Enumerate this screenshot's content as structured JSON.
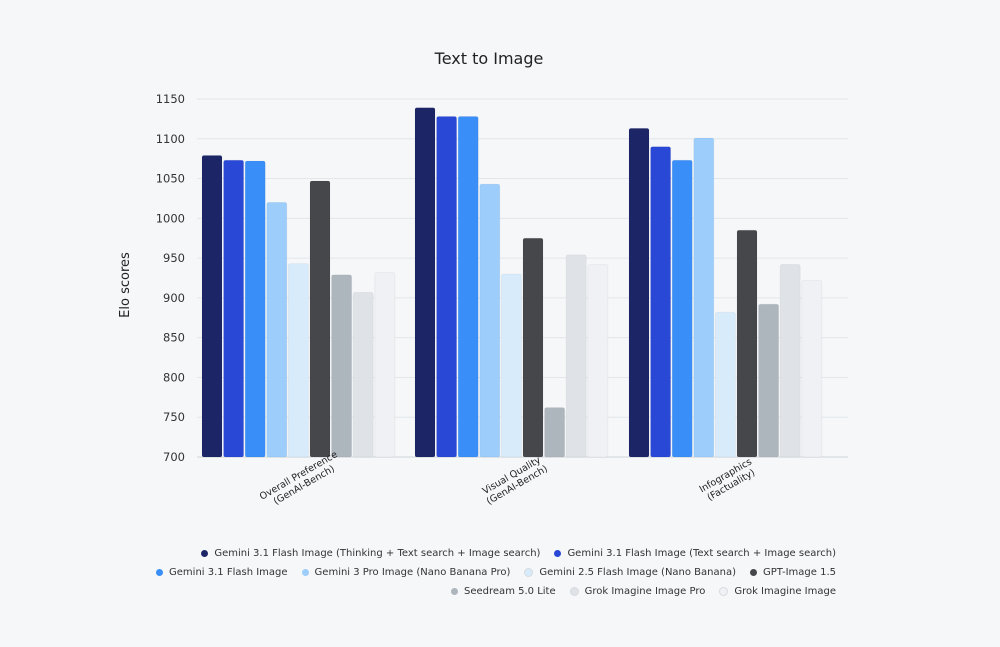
{
  "chart_data": {
    "type": "bar",
    "title": "Text to Image",
    "xlabel": "",
    "ylabel": "Elo scores",
    "ylim": [
      700,
      1150
    ],
    "yticks": [
      700,
      750,
      800,
      850,
      900,
      950,
      1000,
      1050,
      1100,
      1150
    ],
    "grid": true,
    "legend_position": "bottom-right",
    "categories": [
      "Overall Preference\n(GenAI-Bench)",
      "Visual Quality\n(GenAI-Bench)",
      "Infographics\n(Factuality)"
    ],
    "series": [
      {
        "name": "Gemini 3.1 Flash Image (Thinking + Text search + Image search)",
        "color": "#1c2566",
        "values": [
          1079,
          1139,
          1113
        ]
      },
      {
        "name": "Gemini 3.1 Flash Image (Text search + Image search)",
        "color": "#2a48d6",
        "values": [
          1073,
          1128,
          1090
        ]
      },
      {
        "name": "Gemini 3.1 Flash Image",
        "color": "#3a8ef8",
        "values": [
          1072,
          1128,
          1073
        ]
      },
      {
        "name": "Gemini 3 Pro Image (Nano Banana Pro)",
        "color": "#9ccdfb",
        "values": [
          1020,
          1043,
          1101
        ]
      },
      {
        "name": "Gemini 2.5 Flash Image (Nano Banana)",
        "color": "#d8ebfb",
        "values": [
          943,
          930,
          882
        ]
      },
      {
        "name": "GPT-Image 1.5",
        "color": "#45474b",
        "values": [
          1047,
          975,
          985
        ]
      },
      {
        "name": "Seedream 5.0 Lite",
        "color": "#adb5bd",
        "values": [
          929,
          762,
          892
        ]
      },
      {
        "name": "Grok Imagine Image Pro",
        "color": "#dfe3e7",
        "values": [
          907,
          954,
          942
        ]
      },
      {
        "name": "Grok Imagine Image",
        "color": "#eff1f4",
        "values": [
          932,
          942,
          922
        ]
      }
    ]
  }
}
